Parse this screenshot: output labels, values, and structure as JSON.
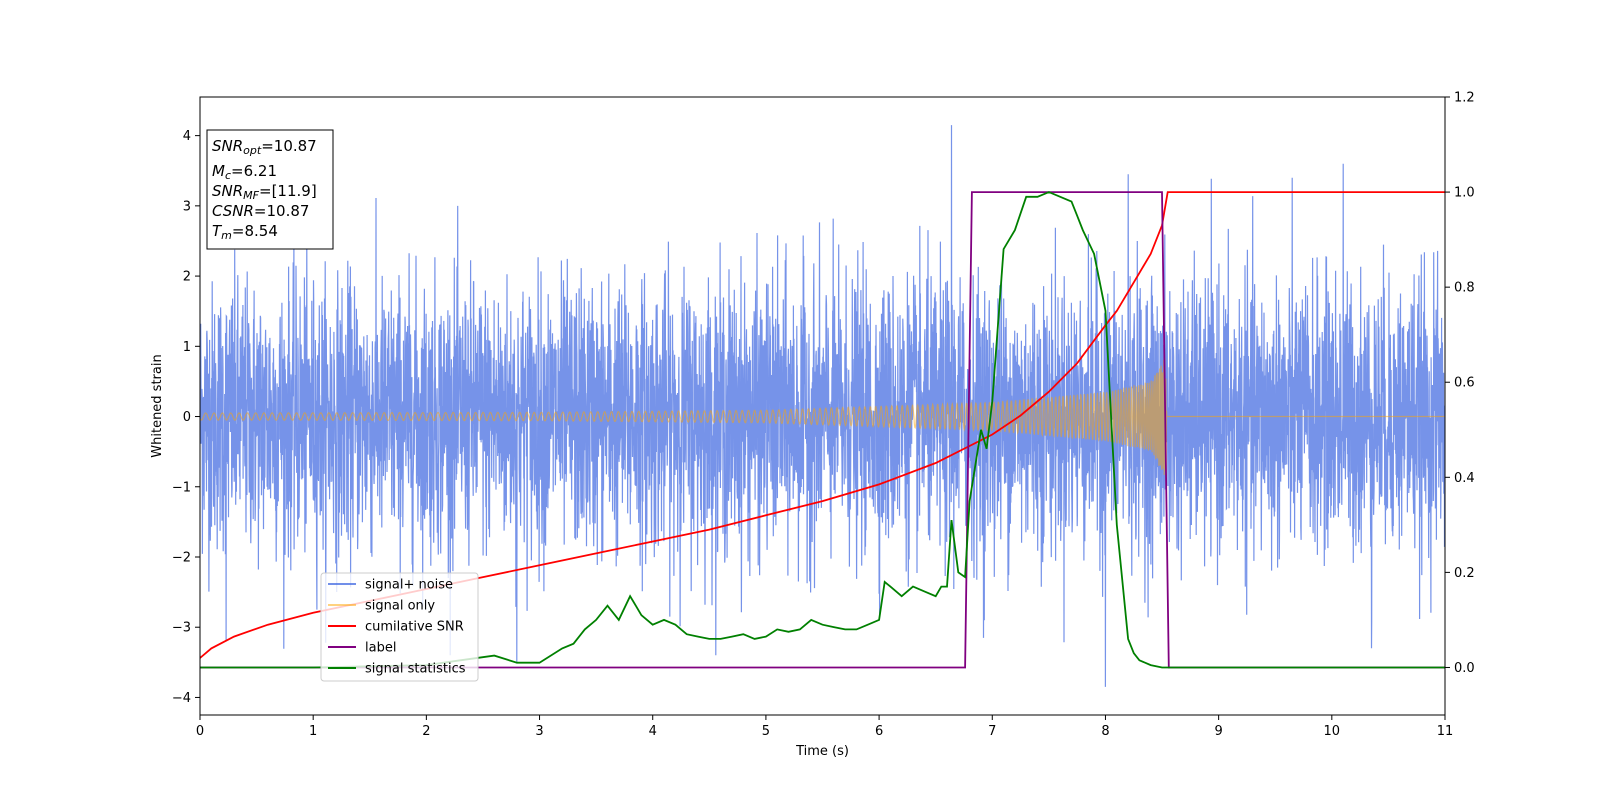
{
  "chart_data": {
    "type": "line",
    "title": "",
    "xlabel": "Time (s)",
    "ylabel": "Whitened strain",
    "xlim": [
      0,
      11
    ],
    "ylim_left": [
      -4.25,
      4.55
    ],
    "ylim_right": [
      -0.1,
      1.2
    ],
    "x_ticks": [
      0,
      1,
      2,
      3,
      4,
      5,
      6,
      7,
      8,
      9,
      10,
      11
    ],
    "y_left_ticks": [
      -4,
      -3,
      -2,
      -1,
      0,
      1,
      2,
      3,
      4
    ],
    "y_right_ticks": [
      0.0,
      0.2,
      0.4,
      0.6,
      0.8,
      1.0,
      1.2
    ],
    "grid": false,
    "legend_position": "lower-left",
    "info_box": {
      "lines": [
        {
          "sym": "SNR",
          "sub": "opt",
          "val": "=10.87"
        },
        {
          "sym": "M",
          "sub": "c",
          "val": "=6.21"
        },
        {
          "sym": "SNR",
          "sub": "MF",
          "val": "=[11.9]"
        },
        {
          "sym": "CSNR",
          "sub": "",
          "val": "=10.87"
        },
        {
          "sym": "T",
          "sub": "m",
          "val": "=8.54"
        }
      ]
    },
    "series": [
      {
        "name": "signal+ noise",
        "color": "#4169e1",
        "axis": "left",
        "kind": "noise",
        "t_range": [
          0,
          11
        ],
        "approx_std": 0.95,
        "peaks": [
          [
            6.64,
            4.15
          ],
          [
            8.0,
            -3.85
          ],
          [
            10.1,
            3.6
          ],
          [
            8.2,
            3.45
          ],
          [
            2.8,
            -3.5
          ],
          [
            0.23,
            -3.2
          ],
          [
            6.93,
            -2.9
          ],
          [
            10.35,
            -3.3
          ]
        ]
      },
      {
        "name": "signal only",
        "color": "#ffa500",
        "axis": "left",
        "kind": "chirp",
        "t_start": 0,
        "t_merge": 8.54,
        "t_end": 11,
        "amplitude_envelope": [
          [
            0,
            0.05
          ],
          [
            3,
            0.06
          ],
          [
            5,
            0.09
          ],
          [
            7,
            0.2
          ],
          [
            8,
            0.35
          ],
          [
            8.4,
            0.5
          ],
          [
            8.54,
            0.9
          ]
        ]
      },
      {
        "name": "cumilative SNR",
        "color": "#ff0000",
        "axis": "right",
        "x": [
          0,
          0.1,
          0.3,
          0.6,
          1,
          1.5,
          2,
          2.5,
          3,
          3.5,
          4,
          4.5,
          5,
          5.5,
          6,
          6.5,
          7,
          7.25,
          7.5,
          7.75,
          8,
          8.1,
          8.2,
          8.3,
          8.4,
          8.5,
          8.55,
          11
        ],
        "y": [
          0.02,
          0.04,
          0.065,
          0.09,
          0.115,
          0.14,
          0.165,
          0.19,
          0.215,
          0.24,
          0.265,
          0.29,
          0.32,
          0.35,
          0.385,
          0.43,
          0.49,
          0.53,
          0.58,
          0.64,
          0.72,
          0.75,
          0.79,
          0.83,
          0.87,
          0.93,
          1.0,
          1.0
        ]
      },
      {
        "name": "label",
        "color": "#800080",
        "axis": "right",
        "x": [
          0,
          6.76,
          6.82,
          8.5,
          8.56,
          11
        ],
        "y": [
          0,
          0,
          1,
          1,
          0,
          0
        ]
      },
      {
        "name": "signal statistics",
        "color": "#008000",
        "axis": "right",
        "x": [
          0,
          1.0,
          2.0,
          2.3,
          2.6,
          2.8,
          3.0,
          3.2,
          3.3,
          3.4,
          3.5,
          3.6,
          3.7,
          3.8,
          3.85,
          3.9,
          4.0,
          4.1,
          4.2,
          4.3,
          4.4,
          4.5,
          4.6,
          4.7,
          4.8,
          4.9,
          5.0,
          5.1,
          5.2,
          5.3,
          5.4,
          5.5,
          5.6,
          5.7,
          5.8,
          5.9,
          6.0,
          6.05,
          6.1,
          6.2,
          6.3,
          6.4,
          6.5,
          6.55,
          6.6,
          6.64,
          6.7,
          6.76,
          6.8,
          6.9,
          6.95,
          7.0,
          7.1,
          7.2,
          7.3,
          7.4,
          7.5,
          7.6,
          7.7,
          7.75,
          7.8,
          7.9,
          8.0,
          8.1,
          8.2,
          8.25,
          8.3,
          8.4,
          8.5,
          8.6,
          11
        ],
        "y": [
          0.0,
          0.0,
          0.005,
          0.015,
          0.025,
          0.01,
          0.01,
          0.04,
          0.05,
          0.08,
          0.1,
          0.13,
          0.1,
          0.15,
          0.13,
          0.11,
          0.09,
          0.1,
          0.09,
          0.07,
          0.065,
          0.06,
          0.06,
          0.065,
          0.07,
          0.06,
          0.065,
          0.08,
          0.075,
          0.08,
          0.1,
          0.09,
          0.085,
          0.08,
          0.08,
          0.09,
          0.1,
          0.18,
          0.17,
          0.15,
          0.17,
          0.16,
          0.15,
          0.17,
          0.17,
          0.31,
          0.2,
          0.19,
          0.35,
          0.5,
          0.46,
          0.56,
          0.88,
          0.92,
          0.99,
          0.99,
          1.0,
          0.99,
          0.98,
          0.95,
          0.92,
          0.87,
          0.75,
          0.3,
          0.06,
          0.03,
          0.015,
          0.005,
          0.0,
          0.0,
          0.0
        ]
      }
    ]
  }
}
